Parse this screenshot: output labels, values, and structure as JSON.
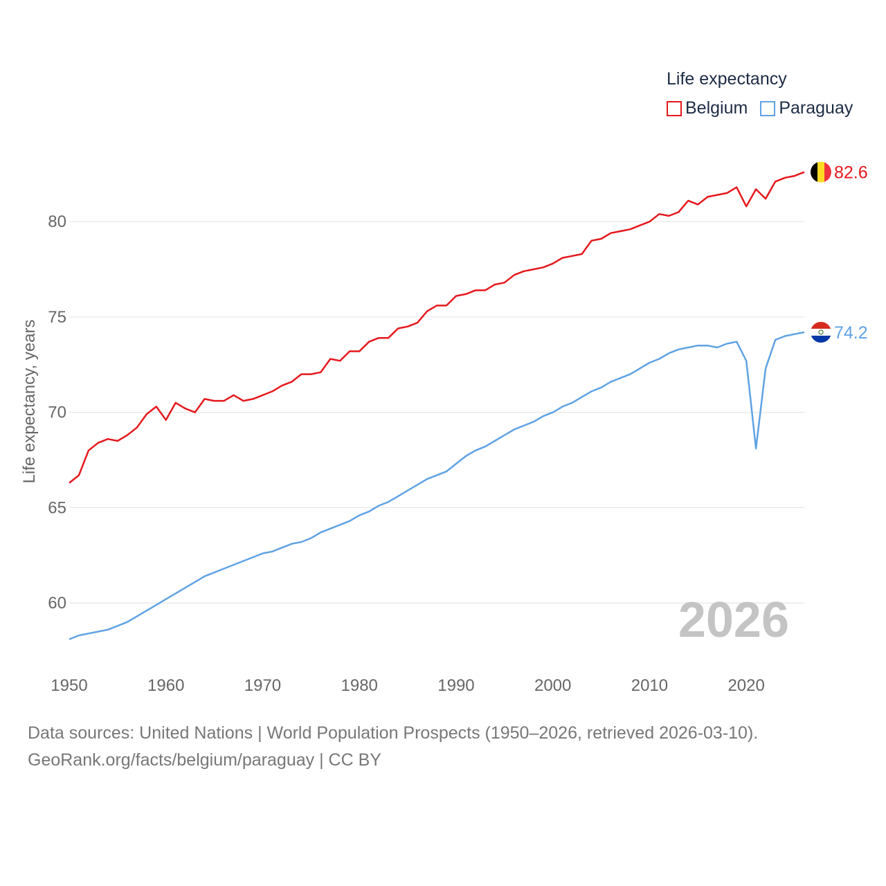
{
  "legend": {
    "title": "Life expectancy",
    "items": [
      {
        "label": "Belgium",
        "color": "#e5171c"
      },
      {
        "label": "Paraguay",
        "color": "#5fa2e3"
      }
    ]
  },
  "footer": {
    "line1": "Data sources: United Nations | World Population Prospects (1950–2026, retrieved 2026-03-10).",
    "line2": "GeoRank.org/facts/belgium/paraguay | CC BY"
  },
  "chart_data": {
    "type": "line",
    "title": "Life expectancy",
    "xlabel": "",
    "ylabel": "Life expectancy, years",
    "xlim": [
      1950,
      2026
    ],
    "ylim": [
      57.5,
      84
    ],
    "x_ticks": [
      1950,
      1960,
      1970,
      1980,
      1990,
      2000,
      2010,
      2020
    ],
    "y_ticks": [
      60,
      65,
      70,
      75,
      80
    ],
    "grid": true,
    "legend_position": "top-right",
    "year_label": "2026",
    "x": [
      1950,
      1951,
      1952,
      1953,
      1954,
      1955,
      1956,
      1957,
      1958,
      1959,
      1960,
      1961,
      1962,
      1963,
      1964,
      1965,
      1966,
      1967,
      1968,
      1969,
      1970,
      1971,
      1972,
      1973,
      1974,
      1975,
      1976,
      1977,
      1978,
      1979,
      1980,
      1981,
      1982,
      1983,
      1984,
      1985,
      1986,
      1987,
      1988,
      1989,
      1990,
      1991,
      1992,
      1993,
      1994,
      1995,
      1996,
      1997,
      1998,
      1999,
      2000,
      2001,
      2002,
      2003,
      2004,
      2005,
      2006,
      2007,
      2008,
      2009,
      2010,
      2011,
      2012,
      2013,
      2014,
      2015,
      2016,
      2017,
      2018,
      2019,
      2020,
      2021,
      2022,
      2023,
      2024,
      2025,
      2026
    ],
    "series": [
      {
        "name": "Belgium",
        "color": "#e5171c",
        "end_label": "82.6",
        "flag": "belgium",
        "values": [
          66.3,
          66.7,
          68.0,
          68.4,
          68.6,
          68.5,
          68.8,
          69.2,
          69.9,
          70.3,
          69.6,
          70.5,
          70.2,
          70.0,
          70.7,
          70.6,
          70.6,
          70.9,
          70.6,
          70.7,
          70.9,
          71.1,
          71.4,
          71.6,
          72.0,
          72.0,
          72.1,
          72.8,
          72.7,
          73.2,
          73.2,
          73.7,
          73.9,
          73.9,
          74.4,
          74.5,
          74.7,
          75.3,
          75.6,
          75.6,
          76.1,
          76.2,
          76.4,
          76.4,
          76.7,
          76.8,
          77.2,
          77.4,
          77.5,
          77.6,
          77.8,
          78.1,
          78.2,
          78.3,
          79.0,
          79.1,
          79.4,
          79.5,
          79.6,
          79.8,
          80.0,
          80.4,
          80.3,
          80.5,
          81.1,
          80.9,
          81.3,
          81.4,
          81.5,
          81.8,
          80.8,
          81.7,
          81.2,
          82.1,
          82.3,
          82.4,
          82.6
        ]
      },
      {
        "name": "Paraguay",
        "color": "#5fa2e3",
        "end_label": "74.2",
        "flag": "paraguay",
        "values": [
          58.1,
          58.3,
          58.4,
          58.5,
          58.6,
          58.8,
          59.0,
          59.3,
          59.6,
          59.9,
          60.2,
          60.5,
          60.8,
          61.1,
          61.4,
          61.6,
          61.8,
          62.0,
          62.2,
          62.4,
          62.6,
          62.7,
          62.9,
          63.1,
          63.2,
          63.4,
          63.7,
          63.9,
          64.1,
          64.3,
          64.6,
          64.8,
          65.1,
          65.3,
          65.6,
          65.9,
          66.2,
          66.5,
          66.7,
          66.9,
          67.3,
          67.7,
          68.0,
          68.2,
          68.5,
          68.8,
          69.1,
          69.3,
          69.5,
          69.8,
          70.0,
          70.3,
          70.5,
          70.8,
          71.1,
          71.3,
          71.6,
          71.8,
          72.0,
          72.3,
          72.6,
          72.8,
          73.1,
          73.3,
          73.4,
          73.5,
          73.5,
          73.4,
          73.6,
          73.7,
          72.7,
          68.1,
          72.3,
          73.8,
          74.0,
          74.1,
          74.2
        ]
      }
    ]
  }
}
